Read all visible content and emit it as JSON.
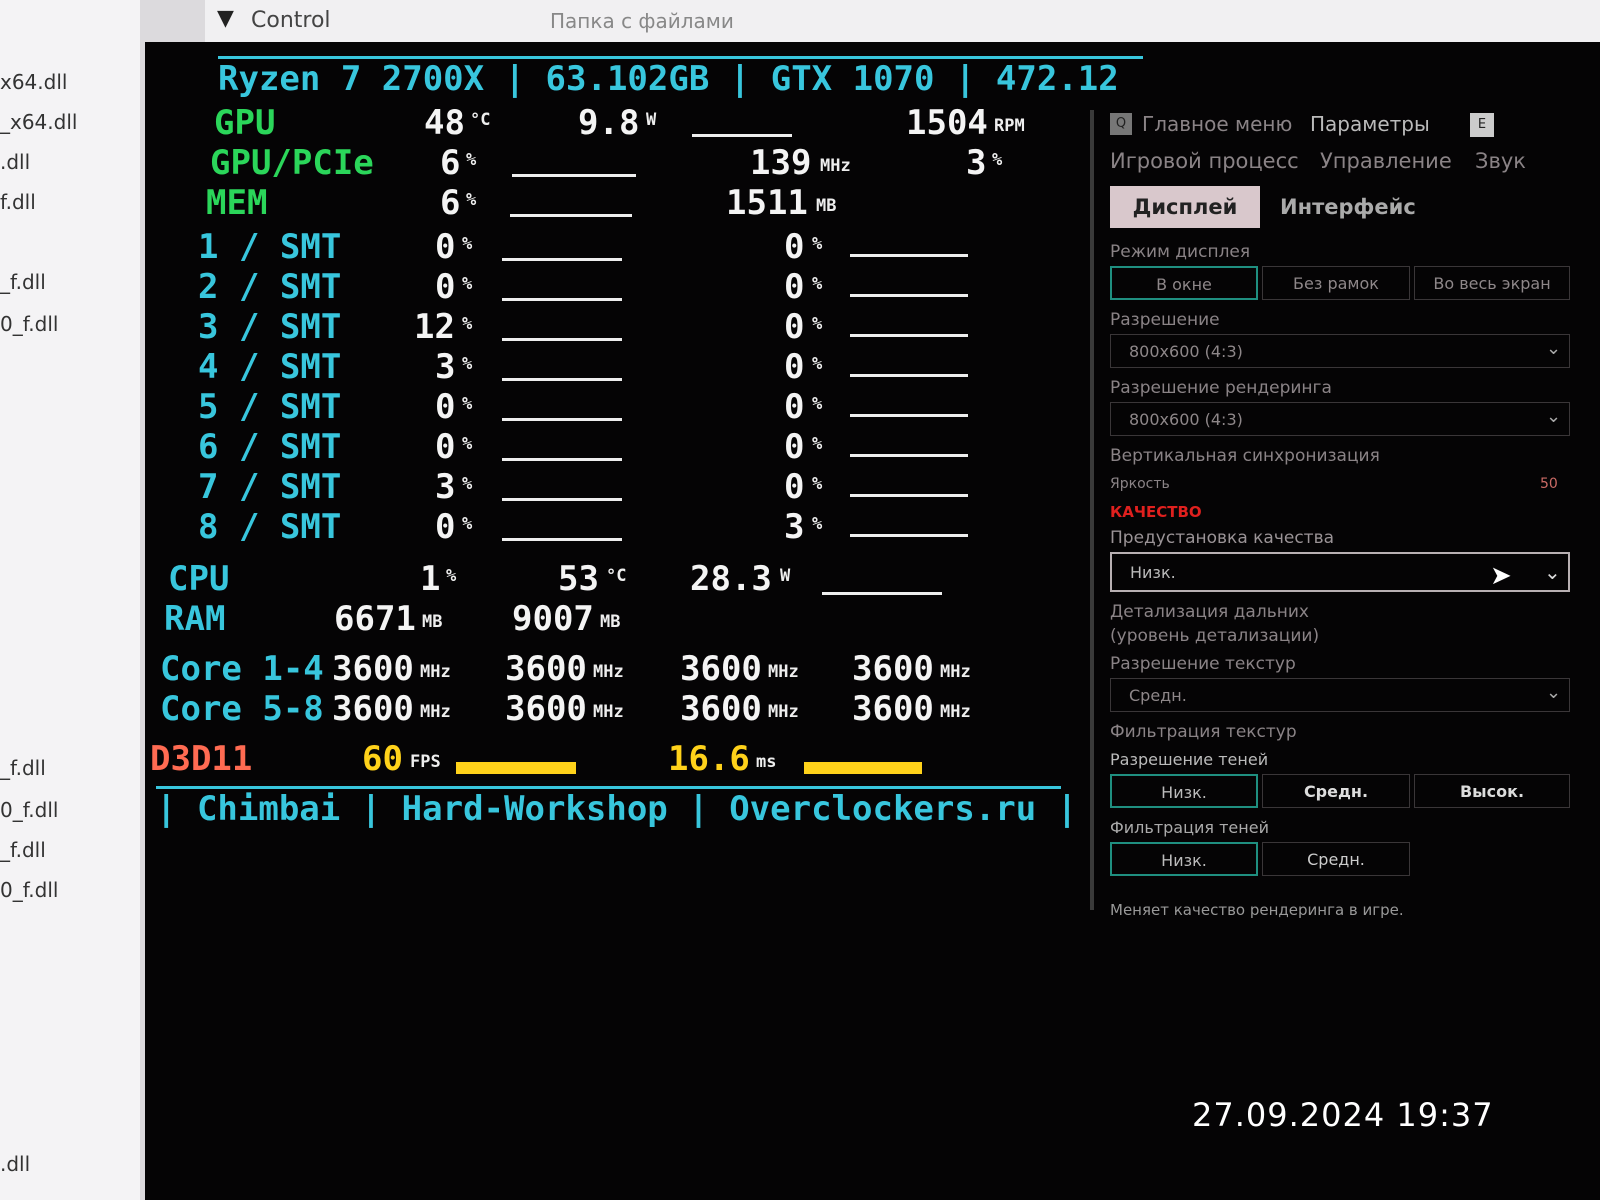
{
  "file_list": [
    "x64.dll",
    "_x64.dll",
    ".dll",
    "f.dll",
    "_f.dll",
    "0_f.dll",
    "_f.dll",
    "0_f.dll",
    "_f.dll",
    "0_f.dll",
    ".dll"
  ],
  "window": {
    "title": "Control",
    "behind_title": "Папка с файлами"
  },
  "game_menu": {
    "tabs": [
      "Главное меню",
      "Параметры",
      "Игровой процесс",
      "Управление",
      "Звук",
      "Дисплей",
      "Интерфейс"
    ],
    "selected_tab": "Дисплей",
    "tab_key_hints": [
      "Q",
      "E"
    ],
    "labels": [
      "Режим дисплея",
      "Разрешение",
      "Разрешение рендеринга",
      "Вертикальная синхронизация",
      "Яркость",
      "КАЧЕСТВО",
      "Предустановка качества",
      "Детализация дальних",
      "(уровень детализации)",
      "Разрешение текстур",
      "Фильтрация текстур",
      "Разрешение теней",
      "Фильтрация теней"
    ],
    "display_mode": [
      "В окне",
      "Без рамок",
      "Во весь экран"
    ],
    "resolution": "800x600 (4:3)",
    "render_resolution": "800x600 (4:3)",
    "brightness_value": "50",
    "quality_preset": "Низк.",
    "texture_res": "Средн.",
    "shadow_res": [
      "Низк.",
      "Средн.",
      "Высок."
    ],
    "shadow_filter": [
      "Низк.",
      "Средн."
    ],
    "description": "Меняет качество рендеринга в игре."
  },
  "overlay": {
    "header": [
      "Ryzen 7 2700X",
      "63.102GB",
      "GTX 1070",
      "472.12"
    ],
    "gpu": {
      "label": "GPU",
      "temp": "48",
      "temp_unit": "°C",
      "power": "9.8",
      "power_unit": "W",
      "fan": "1504",
      "fan_unit": "RPM"
    },
    "gpu_pcie": {
      "label": "GPU/PCIe",
      "load": "6",
      "unit": "%",
      "clock": "139",
      "clock_unit": "MHz",
      "fan_pct": "3",
      "fan_pct_unit": "%"
    },
    "mem": {
      "label": "MEM",
      "load": "6",
      "unit": "%",
      "used": "1511",
      "used_unit": "MB"
    },
    "threads_left": [
      {
        "label": "1 / SMT",
        "v": "0"
      },
      {
        "label": "2 / SMT",
        "v": "0"
      },
      {
        "label": "3 / SMT",
        "v": "12"
      },
      {
        "label": "4 / SMT",
        "v": "3"
      },
      {
        "label": "5 / SMT",
        "v": "0"
      },
      {
        "label": "6 / SMT",
        "v": "0"
      },
      {
        "label": "7 / SMT",
        "v": "3"
      },
      {
        "label": "8 / SMT",
        "v": "0"
      }
    ],
    "threads_right": [
      "0",
      "0",
      "0",
      "0",
      "0",
      "0",
      "0",
      "3"
    ],
    "pct": "%",
    "cpu": {
      "label": "CPU",
      "load": "1",
      "temp": "53",
      "temp_unit": "°C",
      "power": "28.3",
      "power_unit": "W"
    },
    "ram": {
      "label": "RAM",
      "used": "6671",
      "available": "9007",
      "unit": "MB"
    },
    "cores": [
      {
        "label": "Core 1-4",
        "values": [
          "3600",
          "3600",
          "3600",
          "3600"
        ]
      },
      {
        "label": "Core 5-8",
        "values": [
          "3600",
          "3600",
          "3600",
          "3600"
        ]
      }
    ],
    "mhz": "MHz",
    "api": "D3D11",
    "fps": "60",
    "fps_unit": "FPS",
    "frametime": "16.6",
    "frametime_unit": "ms",
    "footer": [
      "Chimbai",
      "Hard-Workshop",
      "Overclockers.ru"
    ]
  },
  "timestamp": "27.09.2024 19:37",
  "colors": {
    "cyan": "#38c6dd",
    "green": "#2bd65a",
    "yellow": "#ffd21a",
    "api_red": "#ff6b52"
  }
}
